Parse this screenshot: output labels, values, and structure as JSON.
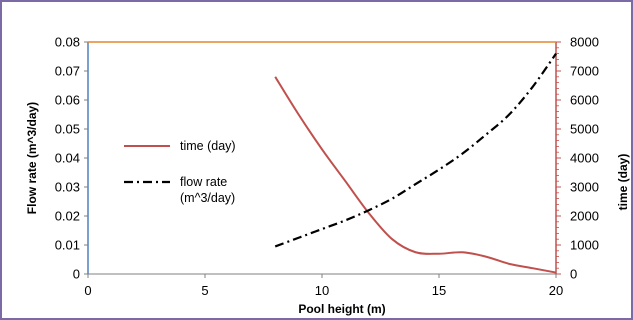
{
  "chart_data": {
    "type": "line",
    "xlabel": "Pool height (m)",
    "ylabel_left": "Flow rate (m^3/day)",
    "ylabel_right": "time (day)",
    "xlim": [
      0,
      20
    ],
    "ylim_left": [
      0,
      0.08
    ],
    "ylim_right": [
      0,
      8000
    ],
    "x_ticks": [
      "0",
      "5",
      "10",
      "15",
      "20"
    ],
    "y_left_ticks": [
      "0",
      "0.01",
      "0.02",
      "0.03",
      "0.04",
      "0.05",
      "0.06",
      "0.07",
      "0.08"
    ],
    "y_right_ticks": [
      "0",
      "1000",
      "2000",
      "3000",
      "4000",
      "5000",
      "6000",
      "7000",
      "8000"
    ],
    "grid": false,
    "legend_position": "left-center",
    "series": [
      {
        "name": "time (day)",
        "axis": "right",
        "color": "#c0504d",
        "style": "solid",
        "x": [
          8,
          9,
          10,
          11,
          12,
          13,
          14,
          15,
          16,
          17,
          18,
          19,
          20
        ],
        "y": [
          6800,
          5500,
          4300,
          3200,
          2100,
          1200,
          750,
          700,
          750,
          600,
          350,
          200,
          50
        ]
      },
      {
        "name": "flow rate (m^3/day)",
        "legend_lines": [
          "flow rate",
          "(m^3/day)"
        ],
        "axis": "left",
        "color": "#000000",
        "style": "dash-dot",
        "x": [
          8,
          9,
          10,
          11,
          12,
          13,
          14,
          15,
          16,
          17,
          18,
          19,
          20
        ],
        "y": [
          0.0095,
          0.0125,
          0.0155,
          0.0185,
          0.022,
          0.026,
          0.031,
          0.036,
          0.0415,
          0.048,
          0.055,
          0.0645,
          0.076
        ]
      }
    ]
  }
}
